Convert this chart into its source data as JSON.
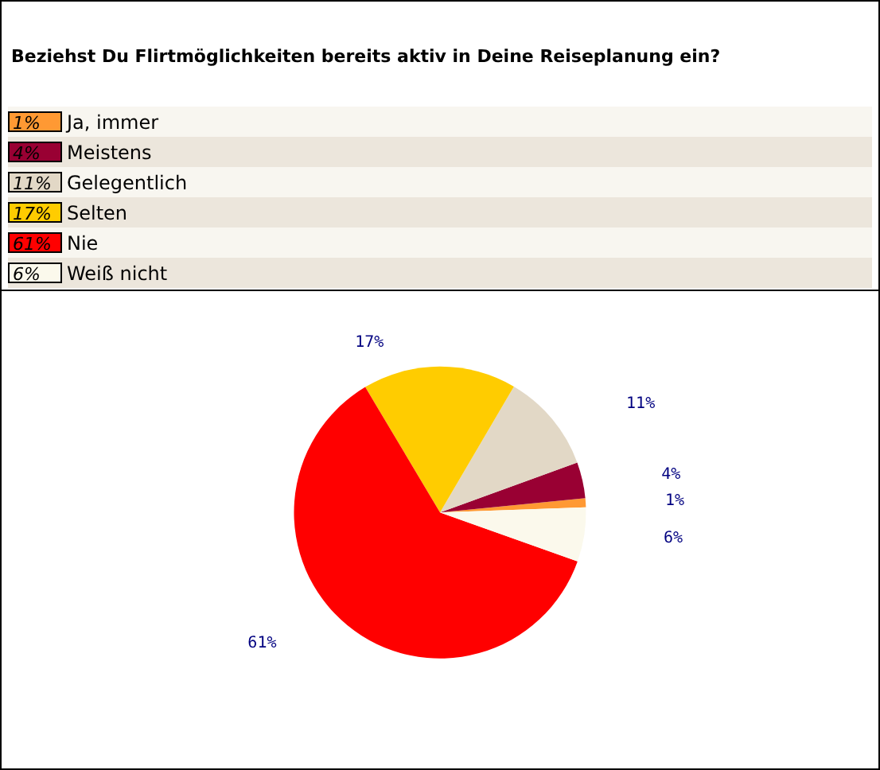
{
  "chart_data": {
    "type": "pie",
    "title": "Beziehst Du Flirtmöglichkeiten bereits aktiv in Deine Reiseplanung ein?",
    "categories": [
      "Ja, immer",
      "Meistens",
      "Gelegentlich",
      "Selten",
      "Nie",
      "Weiß nicht"
    ],
    "values": [
      1,
      4,
      11,
      17,
      61,
      6
    ],
    "value_labels": [
      "1%",
      "4%",
      "11%",
      "17%",
      "61%",
      "6%"
    ],
    "colors": [
      "#ff9933",
      "#990033",
      "#e2d8c6",
      "#ffcc00",
      "#ff0000",
      "#fbf9ec"
    ],
    "legend": "top"
  }
}
